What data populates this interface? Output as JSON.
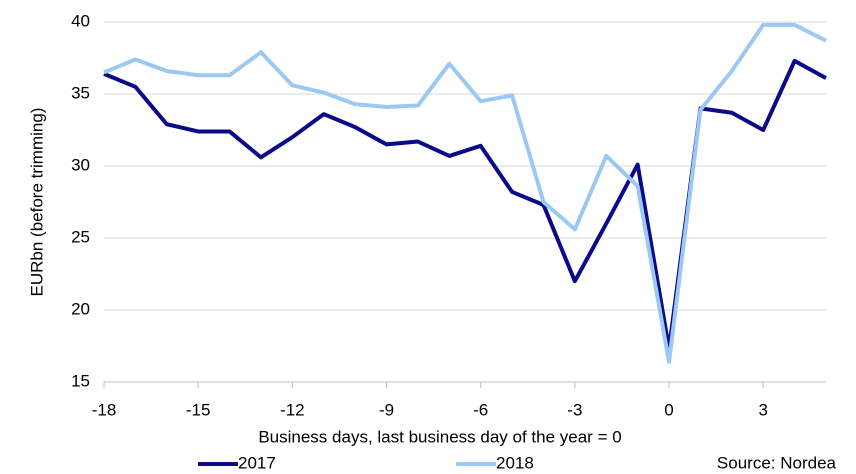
{
  "chart_data": {
    "type": "line",
    "y_label": "EURbn (before trimming)",
    "x_label": "Business days, last business day of the year = 0",
    "source": "Source: Nordea",
    "x": [
      -18,
      -17,
      -16,
      -15,
      -14,
      -13,
      -12,
      -11,
      -10,
      -9,
      -8,
      -7,
      -6,
      -5,
      -4,
      -3,
      -2,
      -1,
      0,
      1,
      2,
      3,
      4,
      5
    ],
    "series": [
      {
        "name": "2017",
        "color": "#0b0b8a",
        "values": [
          36.4,
          35.5,
          32.9,
          32.4,
          32.4,
          30.6,
          32.0,
          33.6,
          32.7,
          31.5,
          31.7,
          30.7,
          31.4,
          28.2,
          27.3,
          22.0,
          26.0,
          30.1,
          17.3,
          34.0,
          33.7,
          32.5,
          37.3,
          36.1
        ]
      },
      {
        "name": "2018",
        "color": "#9cc8f4",
        "values": [
          36.5,
          37.4,
          36.6,
          36.3,
          36.3,
          37.9,
          35.6,
          35.1,
          34.3,
          34.1,
          34.2,
          37.1,
          34.5,
          34.9,
          27.5,
          25.6,
          30.7,
          28.6,
          16.4,
          33.9,
          36.6,
          39.8,
          39.8,
          38.7
        ]
      }
    ],
    "xlim": [
      -18,
      5
    ],
    "xticks": [
      -18,
      -15,
      -12,
      -9,
      -6,
      -3,
      0,
      3
    ],
    "ylim": [
      15,
      40
    ],
    "yticks": [
      15,
      20,
      25,
      30,
      35,
      40
    ],
    "grid": true,
    "legend": "bottom"
  }
}
